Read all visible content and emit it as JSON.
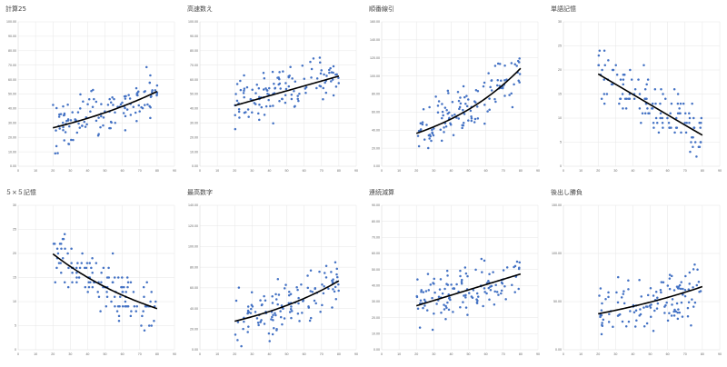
{
  "chart_data": [
    {
      "type": "scatter",
      "title": "計算25",
      "xlim": [
        0,
        90
      ],
      "ylim": [
        0,
        100
      ],
      "ystep": 10,
      "ydecimals": 2,
      "trend": {
        "kind": "exp",
        "a": 21.3,
        "b": 0.0111
      }
    },
    {
      "type": "scatter",
      "title": "高速数え",
      "xlim": [
        0,
        90
      ],
      "ylim": [
        0,
        100
      ],
      "ystep": 10,
      "ydecimals": 2,
      "trend": {
        "kind": "lin",
        "m": 0.34,
        "c": 35.2
      }
    },
    {
      "type": "scatter",
      "title": "順番線引",
      "xlim": [
        0,
        90
      ],
      "ylim": [
        0,
        160
      ],
      "ystep": 20,
      "ydecimals": 2,
      "trend": {
        "kind": "exp",
        "a": 25.3,
        "b": 0.0182
      }
    },
    {
      "type": "scatter",
      "title": "単語記憶",
      "xlim": [
        0,
        90
      ],
      "ylim": [
        0,
        30
      ],
      "ystep": 5,
      "ydecimals": 0,
      "trend": {
        "kind": "lin",
        "m": -0.212,
        "c": 23.4
      }
    },
    {
      "type": "scatter",
      "title": "５×５記憶",
      "xlim": [
        0,
        90
      ],
      "ylim": [
        0,
        30
      ],
      "ystep": 5,
      "ydecimals": 0,
      "trend": {
        "kind": "exp",
        "a": 26.4,
        "b": -0.0141
      }
    },
    {
      "type": "scatter",
      "title": "最高数字",
      "xlim": [
        0,
        90
      ],
      "ylim": [
        0,
        140
      ],
      "ystep": 20,
      "ydecimals": 2,
      "trend": {
        "kind": "exp",
        "a": 20.6,
        "b": 0.0147
      }
    },
    {
      "type": "scatter",
      "title": "連続減算",
      "xlim": [
        0,
        90
      ],
      "ylim": [
        0,
        90
      ],
      "ystep": 10,
      "ydecimals": 2,
      "trend": {
        "kind": "lin",
        "m": 0.33,
        "c": 20.8
      }
    },
    {
      "type": "scatter",
      "title": "後出し勝負",
      "xlim": [
        0,
        90
      ],
      "ylim": [
        0,
        150
      ],
      "ystep": 50,
      "ydecimals": 2,
      "trend": {
        "kind": "exp",
        "a": 30.9,
        "b": 0.0094
      }
    }
  ]
}
